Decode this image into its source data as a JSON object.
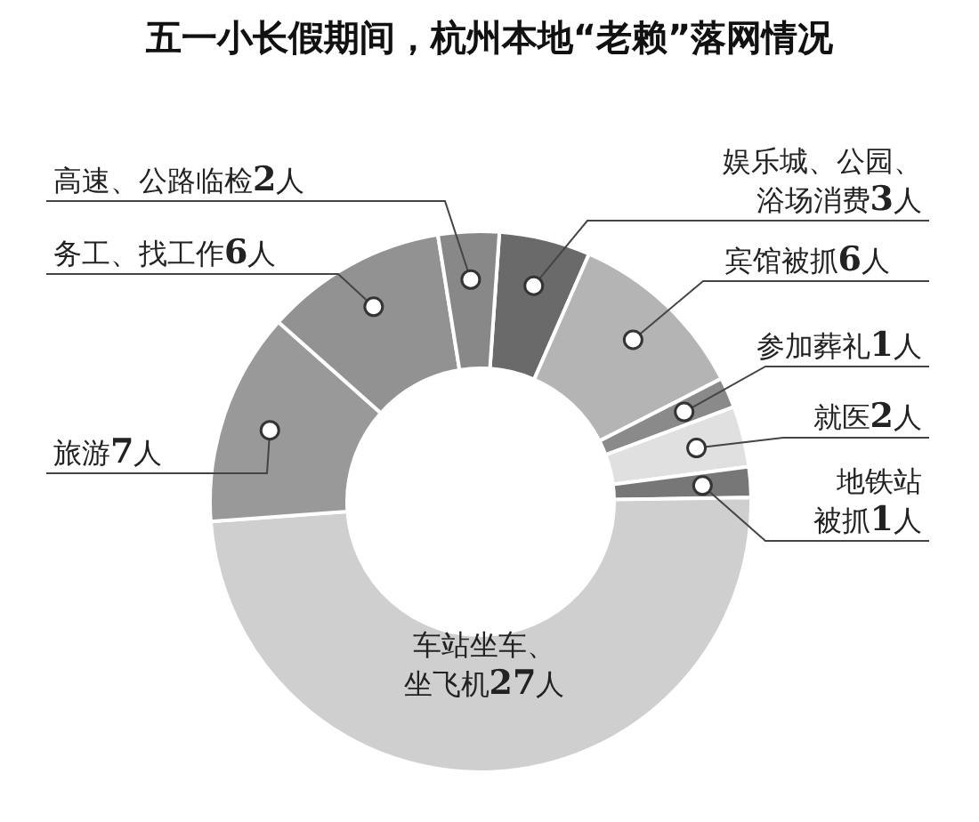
{
  "chart_data": {
    "type": "donut",
    "title": "五一小长假期间，杭州本地“老赖”落网情况",
    "categories": [
      "娱乐城、公园、浴场消费",
      "宾馆被抓",
      "参加葬礼",
      "就医",
      "地铁站被抓",
      "车站坐车、坐飞机",
      "旅游",
      "务工、找工作",
      "高速、公路临检"
    ],
    "values": [
      3,
      6,
      1,
      2,
      1,
      27,
      7,
      6,
      2
    ],
    "value_labels": [
      "3人",
      "6人",
      "1人",
      "2人",
      "1人",
      "27人",
      "7人",
      "6人",
      "2人"
    ],
    "colors": [
      "#6a6a6a",
      "#b4b4b4",
      "#8a8a8a",
      "#e0e0e0",
      "#777777",
      "#cfcfcf",
      "#999999",
      "#929292",
      "#888888"
    ]
  }
}
